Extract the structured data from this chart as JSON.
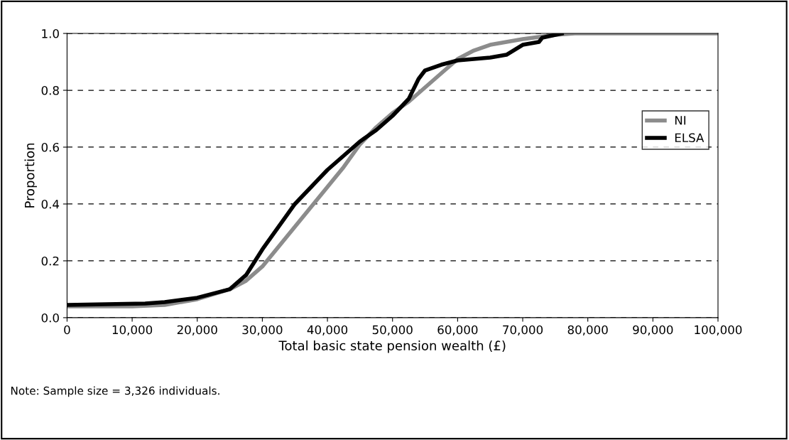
{
  "chart_data": {
    "type": "line",
    "xlabel": "Total basic state pension wealth (£)",
    "ylabel": "Proportion",
    "annotations": [
      "Note: Sample size = 3,326 individuals."
    ],
    "xlim": [
      0,
      100000
    ],
    "ylim": [
      0,
      1
    ],
    "xticks": [
      {
        "value": 0,
        "label": "0"
      },
      {
        "value": 10000,
        "label": "10,000"
      },
      {
        "value": 20000,
        "label": "20,000"
      },
      {
        "value": 30000,
        "label": "30,000"
      },
      {
        "value": 40000,
        "label": "40,000"
      },
      {
        "value": 50000,
        "label": "50,000"
      },
      {
        "value": 60000,
        "label": "60,000"
      },
      {
        "value": 70000,
        "label": "70,000"
      },
      {
        "value": 80000,
        "label": "80,000"
      },
      {
        "value": 90000,
        "label": "90,000"
      },
      {
        "value": 100000,
        "label": "100,000"
      }
    ],
    "yticks": [
      {
        "value": 0,
        "label": "0.0"
      },
      {
        "value": 0.2,
        "label": "0.2"
      },
      {
        "value": 0.4,
        "label": "0.4"
      },
      {
        "value": 0.6,
        "label": "0.6"
      },
      {
        "value": 0.8,
        "label": "0.8"
      },
      {
        "value": 1,
        "label": "1.0"
      }
    ],
    "grid": "y",
    "legend": "right",
    "line_style": "solid",
    "marker": "none",
    "series": [
      {
        "name": "NI",
        "color": "#8c8c8c",
        "x": [
          0,
          10000,
          15000,
          20000,
          25000,
          27500,
          30000,
          32500,
          35000,
          37500,
          40000,
          42500,
          45000,
          47500,
          50000,
          52500,
          55000,
          57500,
          60000,
          62500,
          65000,
          70000,
          75000,
          78000,
          100000
        ],
        "values": [
          0.04,
          0.04,
          0.045,
          0.065,
          0.1,
          0.13,
          0.18,
          0.25,
          0.32,
          0.39,
          0.46,
          0.53,
          0.61,
          0.67,
          0.72,
          0.76,
          0.81,
          0.86,
          0.91,
          0.94,
          0.96,
          0.98,
          0.995,
          1.0,
          1.0
        ]
      },
      {
        "name": "ELSA",
        "color": "#000000",
        "x": [
          0,
          12000,
          15000,
          20000,
          25000,
          27500,
          30000,
          32500,
          35000,
          37500,
          40000,
          42500,
          45000,
          47500,
          50000,
          52500,
          54000,
          55000,
          57500,
          60000,
          65000,
          67500,
          70000,
          72500,
          73000,
          76000
        ],
        "values": [
          0.045,
          0.05,
          0.055,
          0.07,
          0.1,
          0.15,
          0.24,
          0.32,
          0.4,
          0.46,
          0.52,
          0.57,
          0.62,
          0.66,
          0.71,
          0.77,
          0.84,
          0.87,
          0.89,
          0.905,
          0.915,
          0.925,
          0.96,
          0.97,
          0.985,
          1.0
        ]
      }
    ]
  }
}
